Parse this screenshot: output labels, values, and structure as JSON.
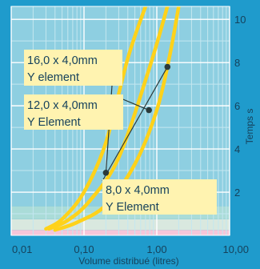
{
  "chart_data": {
    "type": "line",
    "xlabel": "Volume distribué (litres)",
    "ylabel": "Temps s",
    "x_scale": "log",
    "xlim": [
      0.01,
      10
    ],
    "ylim": [
      0,
      10.6
    ],
    "x_ticks": [
      0.01,
      0.1,
      1,
      10
    ],
    "x_tick_labels": [
      "0,01",
      "0,10",
      "1,00",
      "10,00"
    ],
    "y_ticks": [
      2,
      4,
      6,
      8,
      10
    ],
    "y_tick_labels": [
      "2",
      "4",
      "6",
      "8",
      "10"
    ],
    "grid": true,
    "background_bands": [
      {
        "from": 0,
        "to": 0.25,
        "color": "#f6c6d9"
      },
      {
        "from": 0.25,
        "to": 0.75,
        "color": "#d9e8df"
      },
      {
        "from": 0.75,
        "to": 1.35,
        "color": "#aadcd8"
      },
      {
        "from": 1.35,
        "to": 10.6,
        "color": "#8ecfe1"
      }
    ],
    "colors": {
      "outer_background": "#1f9bcc",
      "plot_background": "#8ecfe1",
      "grid_major": "#ffffff",
      "grid_minor": "#c4e7f0",
      "curve": "#ffd21a",
      "label_box": "#fff3b0",
      "marker": "#2b3a3a",
      "text": "#16425c"
    },
    "series": [
      {
        "name": "16,0 x 4,0mm\nY element",
        "x": [
          0.03,
          0.05,
          0.1,
          0.2,
          0.4,
          0.7
        ],
        "y": [
          0.3,
          0.75,
          2.0,
          4.3,
          8.2,
          10.6
        ],
        "marker": {
          "x": 0.2,
          "y": 2.9
        }
      },
      {
        "name": "12,0 x 4,0mm\nY Element",
        "x": [
          0.033,
          0.06,
          0.12,
          0.3,
          0.8,
          1.4
        ],
        "y": [
          0.3,
          0.7,
          1.6,
          3.6,
          7.8,
          10.6
        ],
        "marker": {
          "x": 0.78,
          "y": 5.8
        }
      },
      {
        "name": "8,0 x 4,0mm\nY Element",
        "x": [
          0.04,
          0.08,
          0.2,
          0.5,
          1.0,
          1.5,
          2.0
        ],
        "y": [
          0.25,
          0.6,
          1.4,
          3.3,
          5.8,
          8.3,
          10.6
        ],
        "marker": {
          "x": 1.4,
          "y": 7.8
        }
      }
    ]
  }
}
